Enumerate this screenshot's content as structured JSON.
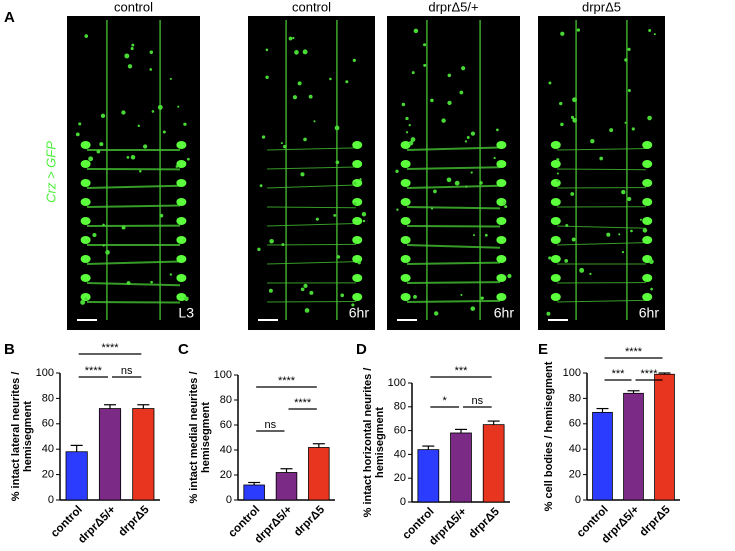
{
  "figure": {
    "panel_a": {
      "label": "A",
      "stain": "Crz > GFP",
      "images": [
        {
          "title": "control",
          "tag": "L3"
        },
        {
          "title": "control",
          "tag": "6hr"
        },
        {
          "title": "drprΔ5/+",
          "tag": "6hr"
        },
        {
          "title": "drprΔ5",
          "tag": "6hr"
        }
      ]
    }
  },
  "chart_data": [
    {
      "type": "bar",
      "panel": "B",
      "ylabel": [
        "% intact lateral neurites /",
        "hemisegment"
      ],
      "categories": [
        "control",
        "drprΔ5/+",
        "drprΔ5"
      ],
      "values": [
        38,
        72,
        72
      ],
      "errors": [
        5,
        3,
        3
      ],
      "colors": [
        "#2b3cff",
        "#7b2b86",
        "#e8351f"
      ],
      "ylim": [
        0,
        100
      ],
      "yticks": [
        0,
        20,
        40,
        60,
        80,
        100
      ],
      "annotations": [
        {
          "text": "****",
          "from": "control",
          "to": "drprΔ5"
        },
        {
          "text": "****",
          "from": "control",
          "to": "drprΔ5/+"
        },
        {
          "text": "ns",
          "from": "drprΔ5/+",
          "to": "drprΔ5"
        }
      ]
    },
    {
      "type": "bar",
      "panel": "C",
      "ylabel": [
        "% intact medial neurites /",
        "hemisegment"
      ],
      "categories": [
        "control",
        "drprΔ5/+",
        "drprΔ5"
      ],
      "values": [
        12,
        22,
        42
      ],
      "errors": [
        2,
        3,
        3
      ],
      "colors": [
        "#2b3cff",
        "#7b2b86",
        "#e8351f"
      ],
      "ylim": [
        0,
        100
      ],
      "yticks": [
        0,
        20,
        40,
        60,
        80,
        100
      ],
      "annotations": [
        {
          "text": "****",
          "from": "control",
          "to": "drprΔ5"
        },
        {
          "text": "ns",
          "from": "control",
          "to": "drprΔ5/+"
        },
        {
          "text": "****",
          "from": "drprΔ5/+",
          "to": "drprΔ5"
        }
      ]
    },
    {
      "type": "bar",
      "panel": "D",
      "ylabel": [
        "% intact horizontal neurites /",
        "hemisegment"
      ],
      "categories": [
        "control",
        "drprΔ5/+",
        "drprΔ5"
      ],
      "values": [
        44,
        58,
        65
      ],
      "errors": [
        3,
        3,
        3
      ],
      "colors": [
        "#2b3cff",
        "#7b2b86",
        "#e8351f"
      ],
      "ylim": [
        0,
        100
      ],
      "yticks": [
        0,
        20,
        40,
        60,
        80,
        100
      ],
      "annotations": [
        {
          "text": "***",
          "from": "control",
          "to": "drprΔ5"
        },
        {
          "text": "*",
          "from": "control",
          "to": "drprΔ5/+"
        },
        {
          "text": "ns",
          "from": "drprΔ5/+",
          "to": "drprΔ5"
        }
      ]
    },
    {
      "type": "bar",
      "panel": "E",
      "ylabel": [
        "% cell bodies / hemisegment"
      ],
      "categories": [
        "control",
        "drprΔ5/+",
        "drprΔ5"
      ],
      "values": [
        69,
        84,
        99
      ],
      "errors": [
        3,
        2,
        1
      ],
      "colors": [
        "#2b3cff",
        "#7b2b86",
        "#e8351f"
      ],
      "ylim": [
        0,
        100
      ],
      "yticks": [
        0,
        20,
        40,
        60,
        80,
        100
      ],
      "annotations": [
        {
          "text": "****",
          "from": "control",
          "to": "drprΔ5"
        },
        {
          "text": "***",
          "from": "control",
          "to": "drprΔ5/+"
        },
        {
          "text": "****",
          "from": "drprΔ5/+",
          "to": "drprΔ5"
        }
      ]
    }
  ]
}
